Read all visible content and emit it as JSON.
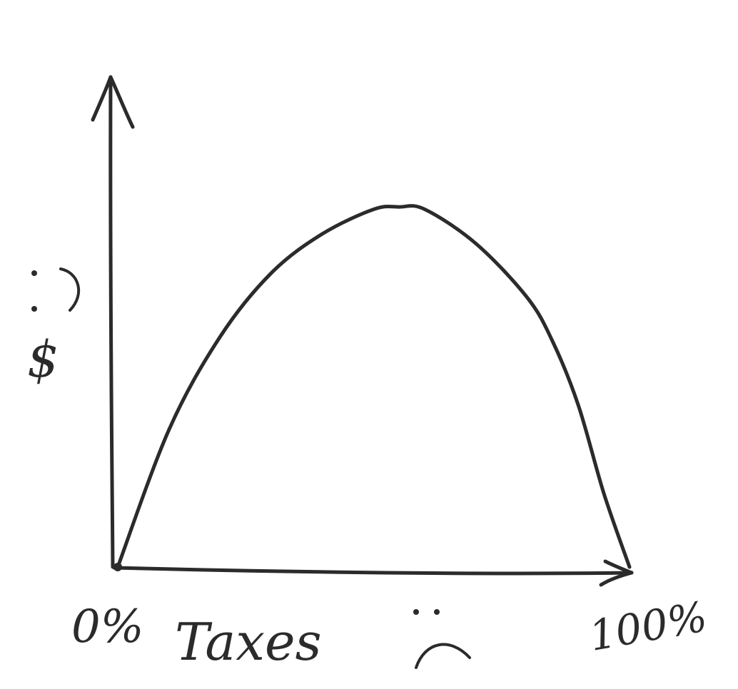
{
  "chart_data": {
    "type": "line",
    "title": "",
    "xlabel": "Taxes",
    "ylabel": "$",
    "x_tick_labels": [
      "0%",
      "100%"
    ],
    "xlim": [
      0,
      100
    ],
    "ylim": [
      0,
      100
    ],
    "grid": false,
    "legend": "none",
    "series": [
      {
        "x": [
          0,
          10,
          20,
          30,
          40,
          50,
          55,
          60,
          70,
          80,
          85,
          90,
          95,
          100
        ],
        "y": [
          0,
          28,
          47,
          60,
          68,
          73,
          73.5,
          73,
          66,
          55,
          46,
          33,
          15,
          0
        ]
      }
    ],
    "annotations": {
      "y_axis_emoticon": "happy-face",
      "x_axis_emoticon": "sad-face"
    },
    "colors": {
      "ink": "#2b2b2b",
      "background": "#ffffff"
    }
  }
}
